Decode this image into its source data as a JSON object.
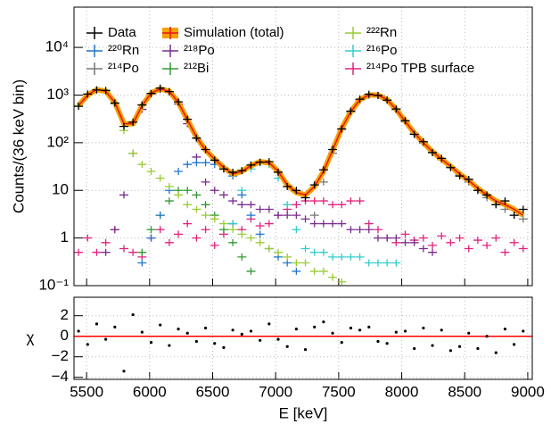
{
  "chart_data": [
    {
      "type": "spectrum",
      "ylabel": "Counts/(36 keV bin)",
      "log_y": true,
      "grid": true,
      "legend": "upper-left",
      "xlim": [
        5400,
        9036
      ],
      "ylim": [
        0.1,
        70000
      ],
      "xticks": [
        5500,
        6000,
        6500,
        7000,
        7500,
        8000,
        8500,
        9000
      ],
      "yticks": [
        {
          "value": 0.1,
          "label": "10⁻¹"
        },
        1,
        10,
        {
          "value": 100,
          "label": "10²"
        },
        {
          "value": 1000,
          "label": "10³"
        },
        {
          "value": 10000,
          "label": "10⁴"
        }
      ],
      "x": [
        5436,
        5508,
        5580,
        5652,
        5724,
        5796,
        5868,
        5940,
        6012,
        6084,
        6156,
        6228,
        6300,
        6372,
        6444,
        6516,
        6588,
        6660,
        6732,
        6804,
        6876,
        6948,
        7020,
        7092,
        7164,
        7236,
        7308,
        7380,
        7452,
        7524,
        7596,
        7668,
        7740,
        7812,
        7884,
        7956,
        8028,
        8100,
        8172,
        8244,
        8316,
        8388,
        8460,
        8532,
        8604,
        8676,
        8748,
        8820,
        8892,
        8964
      ],
      "series": [
        {
          "name": "Data",
          "color": "#000000",
          "values": [
            580,
            1050,
            1280,
            1250,
            680,
            220,
            270,
            620,
            1080,
            1400,
            1180,
            720,
            310,
            125,
            72,
            43,
            28,
            24,
            26,
            34,
            39,
            40,
            24,
            12,
            10,
            7,
            13,
            27,
            72,
            195,
            460,
            820,
            1040,
            980,
            780,
            510,
            290,
            150,
            105,
            62,
            47,
            30,
            20,
            17,
            10,
            8,
            5,
            6,
            3,
            4
          ]
        },
        {
          "name": "Simulation (total)",
          "color": "#e8141c",
          "band_color": "#f5a000",
          "values": [
            600,
            1000,
            1300,
            1200,
            700,
            250,
            250,
            600,
            1100,
            1350,
            1200,
            700,
            300,
            130,
            70,
            45,
            30,
            22,
            25,
            33,
            40,
            38,
            25,
            13,
            9,
            8,
            12,
            25,
            70,
            200,
            450,
            800,
            1000,
            1000,
            800,
            500,
            280,
            160,
            100,
            65,
            45,
            32,
            22,
            16,
            11,
            8,
            6,
            5,
            4,
            3
          ]
        },
        {
          "name": "²²²Rn",
          "color": "#99cc33",
          "values": [
            600,
            1000,
            1300,
            1180,
            650,
            180,
            60,
            35,
            25,
            18,
            12,
            8,
            5,
            4,
            3,
            2.5,
            2,
            1.5,
            1.2,
            1,
            0.8,
            0.6,
            0.5,
            0.4,
            0.3,
            0.3,
            0.2,
            0.2,
            0.15,
            0.12,
            null,
            null,
            null,
            null,
            null,
            null,
            null,
            null,
            null,
            null,
            null,
            null,
            null,
            null,
            null,
            null,
            null,
            null,
            null,
            null
          ]
        },
        {
          "name": "²²⁰Rn",
          "color": "#2277cc",
          "values": [
            null,
            null,
            null,
            null,
            null,
            null,
            null,
            0.3,
            1,
            3,
            10,
            25,
            35,
            38,
            38,
            35,
            30,
            20,
            8,
            3,
            1.2,
            0.6,
            0.4,
            0.3,
            0.2,
            null,
            null,
            null,
            null,
            null,
            null,
            null,
            null,
            null,
            null,
            null,
            null,
            null,
            null,
            null,
            null,
            null,
            null,
            null,
            null,
            null,
            null,
            null,
            null,
            null
          ]
        },
        {
          "name": "²¹⁸Po",
          "color": "#7b2d8e",
          "values": [
            null,
            null,
            null,
            0.5,
            1.5,
            8,
            60,
            500,
            1050,
            1300,
            1150,
            650,
            250,
            50,
            15,
            10,
            8,
            6,
            5,
            5,
            4,
            4,
            3,
            3,
            3,
            2.5,
            2,
            2,
            2,
            2,
            1.5,
            1.5,
            1.5,
            1,
            1,
            1,
            0.8,
            0.8,
            0.6,
            0.5,
            null,
            null,
            null,
            null,
            null,
            null,
            null,
            null,
            null,
            null
          ]
        },
        {
          "name": "²¹⁶Po",
          "color": "#33cccc",
          "values": [
            null,
            null,
            null,
            null,
            null,
            null,
            null,
            null,
            null,
            null,
            null,
            null,
            null,
            null,
            null,
            null,
            null,
            2,
            10,
            28,
            38,
            35,
            18,
            5,
            1.5,
            0.6,
            0.5,
            0.5,
            0.4,
            0.4,
            0.4,
            0.4,
            0.3,
            0.3,
            0.3,
            0.3,
            null,
            null,
            null,
            null,
            null,
            null,
            null,
            null,
            null,
            null,
            null,
            null,
            null,
            null
          ]
        },
        {
          "name": "²¹⁴Po",
          "color": "#777777",
          "values": [
            null,
            null,
            null,
            null,
            null,
            null,
            null,
            null,
            null,
            null,
            null,
            null,
            null,
            null,
            null,
            null,
            null,
            null,
            null,
            null,
            null,
            null,
            null,
            null,
            null,
            null,
            3,
            15,
            60,
            190,
            440,
            790,
            990,
            990,
            790,
            495,
            275,
            157,
            98,
            63,
            44,
            31,
            21,
            15,
            10,
            7,
            5,
            4,
            3,
            2.5
          ]
        },
        {
          "name": "²¹²Bi",
          "color": "#339933",
          "values": [
            null,
            null,
            null,
            null,
            null,
            null,
            null,
            0.5,
            1.5,
            3,
            6,
            10,
            10,
            8,
            5,
            3,
            1.5,
            0.8,
            0.4,
            0.2,
            null,
            null,
            null,
            null,
            null,
            null,
            null,
            null,
            null,
            null,
            null,
            null,
            null,
            null,
            null,
            null,
            null,
            null,
            null,
            null,
            null,
            null,
            null,
            null,
            null,
            null,
            null,
            null,
            null,
            null
          ]
        },
        {
          "name": "²¹⁴Po TPB surface",
          "color": "#e0237d",
          "values": [
            0.5,
            1,
            0.5,
            0.8,
            1.5,
            0.6,
            0.5,
            0.4,
            1,
            1.5,
            0.8,
            1.2,
            2,
            1,
            1.5,
            0.7,
            1.2,
            2,
            1.5,
            2.5,
            1.8,
            2,
            3,
            4,
            5,
            6,
            6,
            6,
            5,
            5,
            6,
            6,
            2,
            1.5,
            1,
            0.8,
            1.2,
            0.9,
            1,
            0.7,
            1.1,
            0.8,
            1,
            0.6,
            0.9,
            0.7,
            1,
            0.5,
            0.8,
            0.6
          ]
        }
      ]
    },
    {
      "type": "scatter",
      "xlabel": "E [keV]",
      "ylabel": "χ",
      "grid": true,
      "color": "#000000",
      "xlim": [
        5400,
        9036
      ],
      "ylim": [
        -4.2,
        3.8
      ],
      "xticks": [
        5500,
        6000,
        6500,
        7000,
        7500,
        8000,
        8500,
        9000
      ],
      "yticks": [
        {
          "value": -4,
          "label": "−4"
        },
        {
          "value": -2,
          "label": "−2"
        },
        0,
        2
      ],
      "reference_line": {
        "value": 0,
        "color": "#ff0000"
      },
      "x": [
        5436,
        5508,
        5580,
        5652,
        5724,
        5796,
        5868,
        5940,
        6012,
        6084,
        6156,
        6228,
        6300,
        6372,
        6444,
        6516,
        6588,
        6660,
        6732,
        6804,
        6876,
        6948,
        7020,
        7092,
        7164,
        7236,
        7308,
        7380,
        7452,
        7524,
        7596,
        7668,
        7740,
        7812,
        7884,
        7956,
        8028,
        8100,
        8172,
        8244,
        8316,
        8388,
        8460,
        8532,
        8604,
        8676,
        8748,
        8820,
        8892,
        8964
      ],
      "values": [
        0.5,
        -0.8,
        1.2,
        -0.3,
        0.9,
        -3.4,
        2.1,
        0.4,
        -0.6,
        1.1,
        -0.9,
        0.7,
        0.3,
        -0.5,
        0.8,
        -0.7,
        -1.1,
        0.6,
        0.2,
        0.5,
        -0.4,
        1.2,
        -0.3,
        -1.0,
        0.7,
        -1.3,
        0.9,
        1.4,
        0.3,
        -0.6,
        0.8,
        0.6,
        0.9,
        -0.5,
        -0.7,
        0.4,
        0.5,
        -1.2,
        0.8,
        -0.9,
        0.6,
        -1.4,
        -1.0,
        0.3,
        -1.2,
        0,
        -1.6,
        0.7,
        -0.8,
        0.5
      ]
    }
  ]
}
